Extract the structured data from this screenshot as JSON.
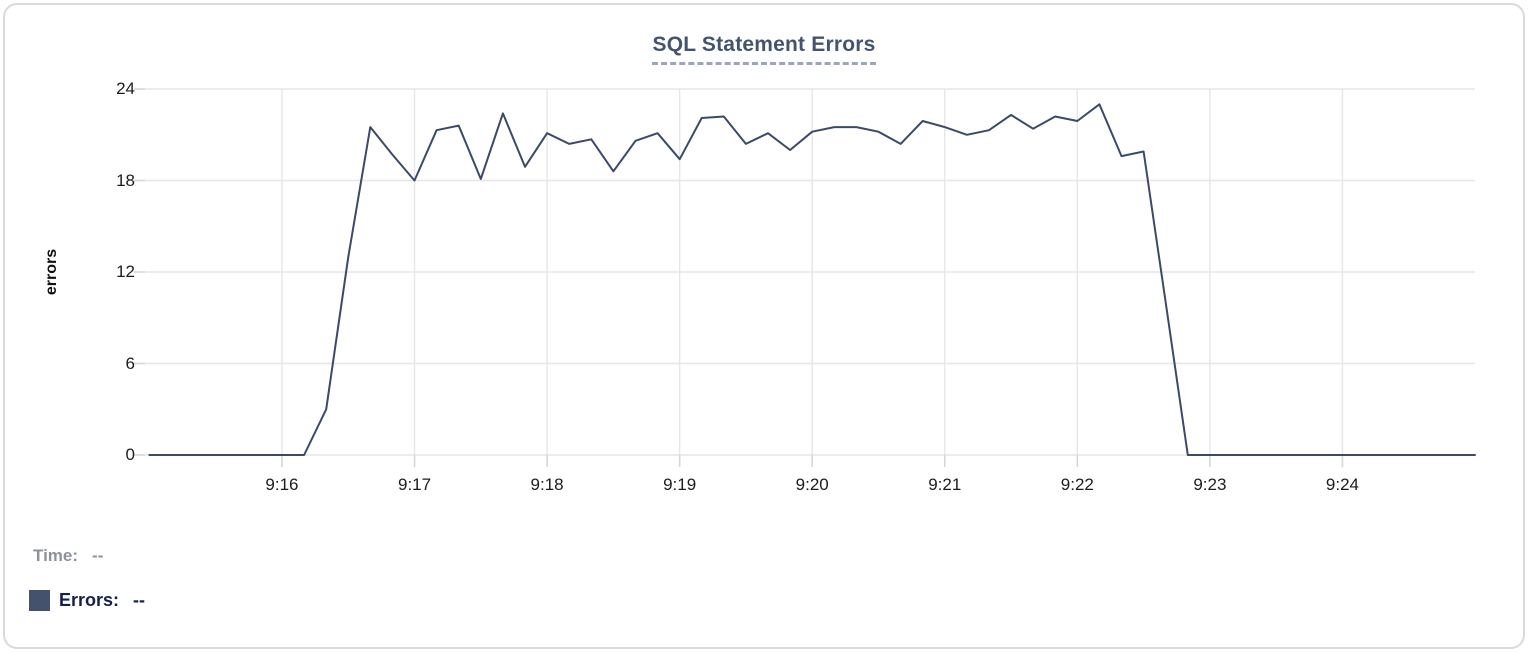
{
  "chart": {
    "title": "SQL Statement Errors",
    "y_axis_title": "errors"
  },
  "tooltip": {
    "time_label": "Time:",
    "time_value": "--",
    "errors_label": "Errors:",
    "errors_value": "--"
  },
  "colors": {
    "series_line": "#3b4a68",
    "legend_swatch": "#44526e",
    "title_text": "#44546e",
    "title_underline": "#9aa6ba",
    "grid_line": "#e6e6e6",
    "tick_mark": "#d4d6d9",
    "axis_text": "#1c1c1c",
    "muted_text": "#8d9299",
    "dark_text": "#15204a",
    "card_border": "#d9dadc"
  },
  "chart_data": {
    "type": "line",
    "title": "SQL Statement Errors",
    "xlabel": "",
    "ylabel": "errors",
    "ylim": [
      0,
      24
    ],
    "y_ticks": [
      0,
      6,
      12,
      18,
      24
    ],
    "x_ticks": [
      "9:16",
      "9:17",
      "9:18",
      "9:19",
      "9:20",
      "9:21",
      "9:22",
      "9:23",
      "9:24"
    ],
    "x_range": [
      "9:14:58",
      "9:25:00"
    ],
    "grid": true,
    "legend_position": "bottom-left readout (Time / Errors, empty values shown as --)",
    "x": [
      "9:15:00",
      "9:15:10",
      "9:15:20",
      "9:15:30",
      "9:15:40",
      "9:15:50",
      "9:16:00",
      "9:16:10",
      "9:16:20",
      "9:16:30",
      "9:16:40",
      "9:16:50",
      "9:17:00",
      "9:17:10",
      "9:17:20",
      "9:17:30",
      "9:17:40",
      "9:17:50",
      "9:18:00",
      "9:18:10",
      "9:18:20",
      "9:18:30",
      "9:18:40",
      "9:18:50",
      "9:19:00",
      "9:19:10",
      "9:19:20",
      "9:19:30",
      "9:19:40",
      "9:19:50",
      "9:20:00",
      "9:20:10",
      "9:20:20",
      "9:20:30",
      "9:20:40",
      "9:20:50",
      "9:21:00",
      "9:21:10",
      "9:21:20",
      "9:21:30",
      "9:21:40",
      "9:21:50",
      "9:22:00",
      "9:22:10",
      "9:22:20",
      "9:22:30",
      "9:22:40",
      "9:22:50",
      "9:23:00",
      "9:23:10",
      "9:23:20",
      "9:23:30",
      "9:23:40",
      "9:23:50",
      "9:24:00",
      "9:24:10",
      "9:24:20",
      "9:24:30",
      "9:24:40",
      "9:24:50",
      "9:25:00"
    ],
    "series": [
      {
        "name": "Errors",
        "color": "#3b4a68",
        "values": [
          0,
          0,
          0,
          0,
          0,
          0,
          0,
          0,
          3,
          13,
          21.5,
          19.7,
          18,
          21.3,
          21.6,
          18.1,
          22.4,
          18.9,
          21.1,
          20.4,
          20.7,
          18.6,
          20.6,
          21.1,
          19.4,
          22.1,
          22.2,
          20.4,
          21.1,
          20.0,
          21.2,
          21.5,
          21.5,
          21.2,
          20.4,
          21.9,
          21.5,
          21.0,
          21.3,
          22.3,
          21.4,
          22.2,
          21.9,
          23,
          19.6,
          19.9,
          10,
          0,
          0,
          0,
          0,
          0,
          0,
          0,
          0,
          0,
          0,
          0,
          0,
          0,
          0
        ]
      }
    ]
  }
}
